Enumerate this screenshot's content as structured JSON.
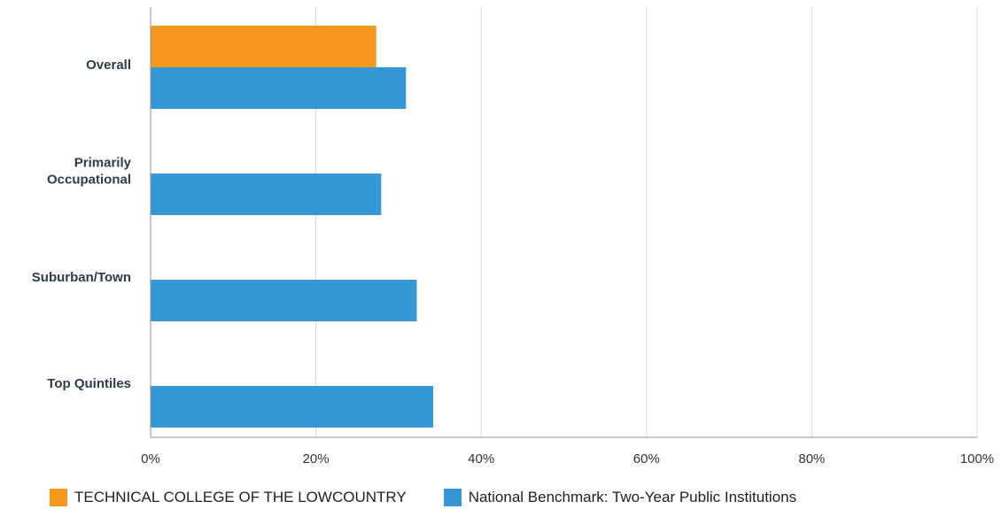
{
  "chart_data": {
    "type": "bar",
    "orientation": "horizontal",
    "categories": [
      "Overall",
      "Primarily Occupational",
      "Suburban/Town",
      "Top Quintiles"
    ],
    "series": [
      {
        "name": "TECHNICAL COLLEGE OF THE LOWCOUNTRY",
        "color": "#f7991f",
        "values": [
          27.3,
          null,
          null,
          null
        ]
      },
      {
        "name": "National Benchmark: Two-Year Public Institutions",
        "color": "#3498d6",
        "values": [
          30.9,
          27.9,
          32.2,
          34.2
        ]
      }
    ],
    "xlim": [
      0,
      100
    ],
    "xticks": [
      "0%",
      "20%",
      "40%",
      "60%",
      "80%",
      "100%"
    ],
    "grid": true,
    "legend_position": "bottom-left",
    "title": "",
    "xlabel": "",
    "ylabel": ""
  }
}
